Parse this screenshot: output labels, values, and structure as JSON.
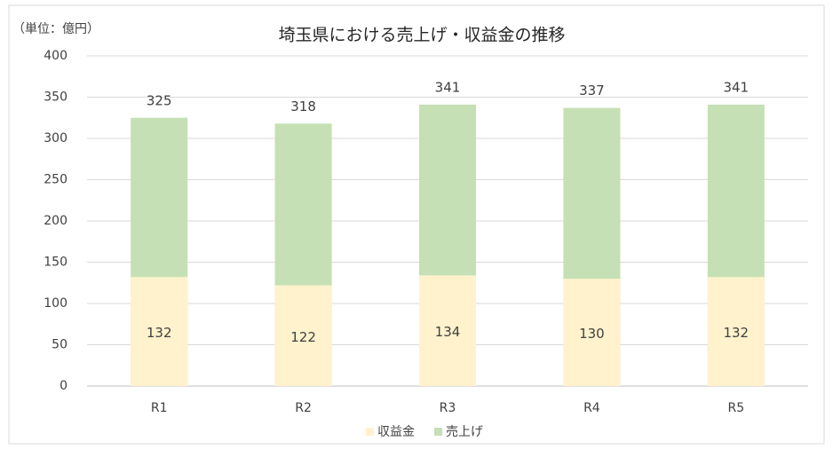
{
  "chart_data": {
    "type": "bar",
    "title": "埼玉県における売上げ・収益金の推移",
    "axis_note": "（単位：億円）",
    "categories": [
      "R1",
      "R2",
      "R3",
      "R4",
      "R5"
    ],
    "series": [
      {
        "name": "収益金",
        "color": "#fff2cc",
        "values": [
          132,
          122,
          134,
          130,
          132
        ]
      },
      {
        "name": "売上げ",
        "color": "#c5e0b4",
        "values": [
          325,
          318,
          341,
          337,
          341
        ]
      }
    ],
    "overlap": true,
    "ylim": [
      0,
      400
    ],
    "yticks": [
      0,
      50,
      100,
      150,
      200,
      250,
      300,
      350,
      400
    ],
    "grid": true,
    "legend": "bottom"
  }
}
